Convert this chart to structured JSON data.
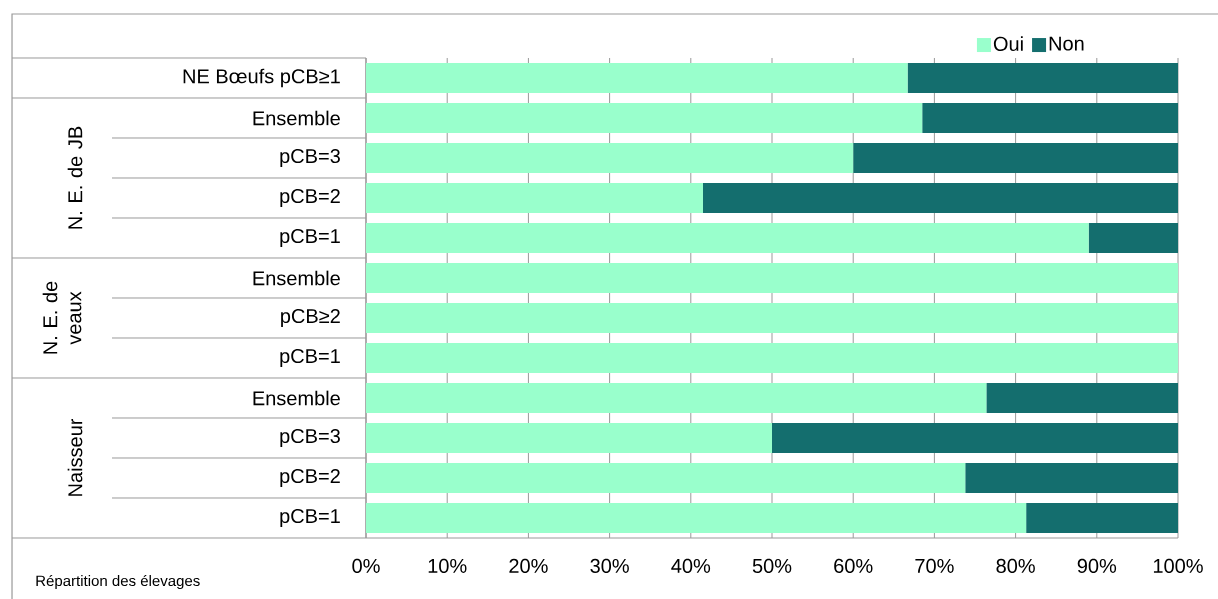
{
  "chart_data": {
    "type": "bar",
    "orientation": "horizontal",
    "stacked": true,
    "categories": [
      "NE Bœufs pCB≥1",
      "Ensemble",
      "pCB=3",
      "pCB=2",
      "pCB=1",
      "Ensemble",
      "pCB≥2",
      "pCB=1",
      "Ensemble",
      "pCB=3",
      "pCB=2",
      "pCB=1"
    ],
    "series": [
      {
        "name": "Oui",
        "color": "#99ffcc",
        "values": [
          66.7,
          68.5,
          60,
          41.5,
          89,
          100,
          100,
          100,
          76.4,
          50,
          73.8,
          81.3
        ]
      },
      {
        "name": "Non",
        "color": "#146e6e",
        "values": [
          33.3,
          31.5,
          40,
          58.5,
          11,
          0,
          0,
          0,
          23.6,
          50,
          26.2,
          18.7
        ]
      }
    ],
    "xlim": [
      0,
      100
    ],
    "xticks": [
      {
        "value": 0,
        "label": "0%"
      },
      {
        "value": 10,
        "label": "10%"
      },
      {
        "value": 20,
        "label": "20%"
      },
      {
        "value": 30,
        "label": "30%"
      },
      {
        "value": 40,
        "label": "40%"
      },
      {
        "value": 50,
        "label": "50%"
      },
      {
        "value": 60,
        "label": "60%"
      },
      {
        "value": 70,
        "label": "70%"
      },
      {
        "value": 80,
        "label": "80%"
      },
      {
        "value": 90,
        "label": "90%"
      },
      {
        "value": 100,
        "label": "100%"
      }
    ],
    "grid": "x",
    "legend": "top right",
    "annotations": [
      "N. E. de JB",
      "N. E. de veaux",
      "Naisseur",
      "Répartition des élevages"
    ]
  }
}
